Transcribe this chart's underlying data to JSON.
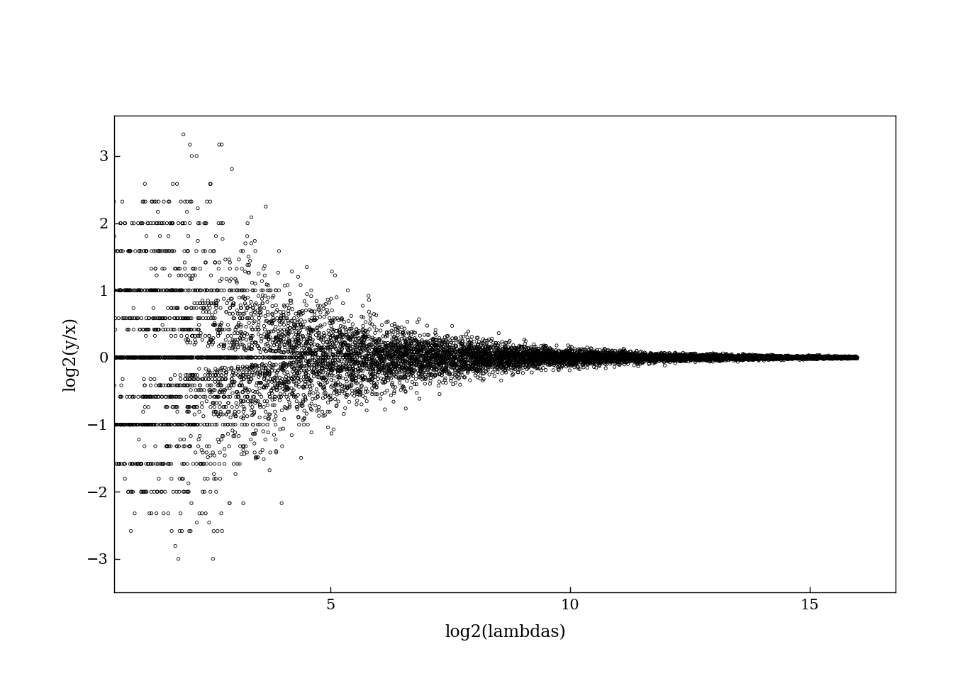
{
  "xlabel": "log2(lambdas)",
  "ylabel": "log2(y/x)",
  "xlim": [
    0.5,
    16.8
  ],
  "ylim": [
    -3.5,
    3.6
  ],
  "xticks": [
    5,
    10,
    15
  ],
  "yticks": [
    -3,
    -2,
    -1,
    0,
    1,
    2,
    3
  ],
  "n_genes": 10000,
  "seed": 42,
  "marker_size": 3.5,
  "marker_lw": 0.6,
  "marker_color": "black",
  "bg_color": "white",
  "figsize": [
    13.44,
    9.6
  ],
  "dpi": 100,
  "font_family": "DejaVu Serif",
  "xlabel_fontsize": 17,
  "ylabel_fontsize": 17,
  "tick_fontsize": 15
}
